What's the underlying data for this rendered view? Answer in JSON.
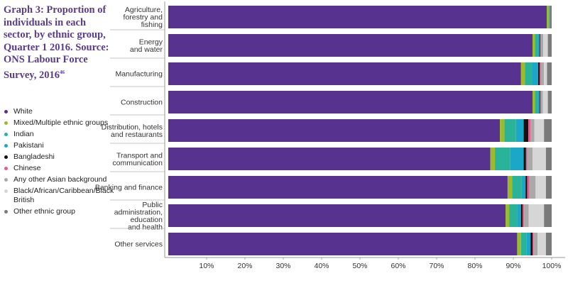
{
  "title": "Graph 3: Proportion of individuals in each sector, by ethnic group, Quarter 1 2016. Source: ONS Labour Force Survey, 2016",
  "title_footnote": "46",
  "chart_data": {
    "type": "bar",
    "orientation": "horizontal",
    "stacked": true,
    "title": "Graph 3: Proportion of individuals in each sector, by ethnic group, Quarter 1 2016. Source: ONS Labour Force Survey, 2016",
    "xlim": [
      0,
      100
    ],
    "x_ticks": [
      "10%",
      "20%",
      "30%",
      "40%",
      "50%",
      "60%",
      "70%",
      "80%",
      "90%",
      "100%"
    ],
    "legend_position": "left",
    "grid": false,
    "categories": [
      [
        "Agriculture,",
        "forestry and",
        "fishing"
      ],
      [
        "Energy",
        "and water"
      ],
      [
        "Manufacturing"
      ],
      [
        "Construction"
      ],
      [
        "Distribution, hotels",
        "and restaurants"
      ],
      [
        "Transport and",
        "communication"
      ],
      [
        "Banking and finance"
      ],
      [
        "Public",
        "administration,",
        "education",
        "and health"
      ],
      [
        "Other services"
      ]
    ],
    "series": [
      {
        "name": "White",
        "color": "#57338f",
        "values": [
          98.7,
          95.0,
          92.0,
          95.0,
          86.5,
          84.0,
          88.5,
          88.0,
          91.0
        ]
      },
      {
        "name": "Mixed/Multiple ethnic groups",
        "color": "#9bbb2c",
        "values": [
          0.5,
          0.6,
          1.0,
          0.6,
          1.2,
          1.2,
          1.2,
          0.9,
          1.0
        ]
      },
      {
        "name": "Indian",
        "color": "#2bb39a",
        "values": [
          0.2,
          0.8,
          2.0,
          0.8,
          3.0,
          4.0,
          2.5,
          2.1,
          1.5
        ]
      },
      {
        "name": "Pakistani",
        "color": "#1aa7c9",
        "values": [
          0.1,
          0.4,
          1.5,
          0.4,
          2.0,
          3.5,
          1.0,
          1.0,
          1.0
        ]
      },
      {
        "name": "Bangladeshi",
        "color": "#111111",
        "values": [
          0.0,
          0.2,
          0.4,
          0.2,
          1.2,
          0.6,
          0.4,
          0.4,
          0.5
        ]
      },
      {
        "name": "Chinese",
        "color": "#e35f8b",
        "values": [
          0.0,
          0.2,
          0.3,
          0.2,
          0.6,
          0.3,
          0.6,
          0.4,
          0.3
        ]
      },
      {
        "name": "Any other Asian background",
        "color": "#a9a9a9",
        "values": [
          0.0,
          0.6,
          0.8,
          0.5,
          1.0,
          1.4,
          1.6,
          1.2,
          1.0
        ]
      },
      {
        "name": "Black/African/Caribbean/Black British",
        "color": "#d6d6d6",
        "values": [
          0.0,
          1.2,
          0.8,
          1.3,
          2.5,
          3.5,
          2.7,
          4.0,
          2.2
        ]
      },
      {
        "name": "Other ethnic group",
        "color": "#7a7a7a",
        "values": [
          0.5,
          1.0,
          1.2,
          1.0,
          2.0,
          1.5,
          1.5,
          2.0,
          1.5
        ]
      }
    ]
  }
}
